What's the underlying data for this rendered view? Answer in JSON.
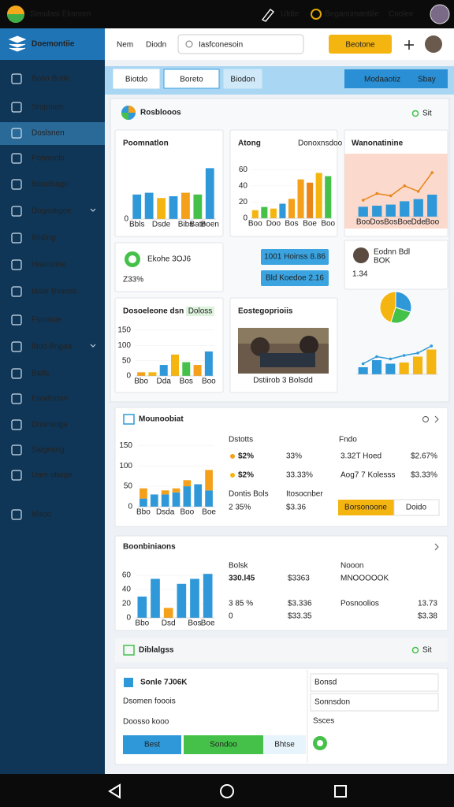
{
  "status_bar": {
    "app_title": "Simulasi Ekonom",
    "action_1": "Uldte",
    "coins": "Beganomantiile",
    "action_2": "Coolee"
  },
  "sidebar": {
    "brand": "Doemontiie",
    "items": [
      "Bosn Bntle",
      "Sropnien",
      "Doslsnen",
      "Ponoonls",
      "Boockiago",
      "Dogsotigoe",
      "Btiding",
      "Hraonotie",
      "Iasar Bxaoss",
      "Fsontuie",
      "Ibod Bngaa",
      "Batls",
      "Enodnrton",
      "Dnonsoga",
      "Saignsng",
      "Uam oboge",
      "Maoo"
    ]
  },
  "header": {
    "link_1": "Nem",
    "link_2": "Diodn",
    "search_placeholder": "Iasfconesoin",
    "button": "Beotone"
  },
  "tabs": {
    "items": [
      "Biotdo",
      "Boreto",
      "Biodon"
    ],
    "button_1": "Modaaotiz",
    "button_2": "Sbay"
  },
  "overview": {
    "title": "Rosblooos",
    "more": "Sit",
    "card_1": {
      "title": "Poomnatlon",
      "chart": {
        "type": "bar",
        "categories": [
          "Bbls",
          null,
          "Dsde",
          null,
          "Bibs",
          "Bate",
          "Boen"
        ],
        "values": [
          28,
          30,
          24,
          26,
          30,
          28,
          58
        ],
        "colors": [
          "#2e98d8",
          "#2e98d8",
          "#f5b511",
          "#2e98d8",
          "#f5a01a",
          "#45c14a",
          "#2e98d8"
        ],
        "ylim": [
          0,
          70
        ],
        "yticks": [
          0
        ]
      }
    },
    "card_2": {
      "title": "Atong",
      "legend": "Donoxnsdoo",
      "chart": {
        "type": "bar",
        "categories": [
          "Boo",
          null,
          "Doo",
          null,
          "Bos",
          null,
          "Boe",
          null,
          "Boo"
        ],
        "values": [
          10,
          14,
          12,
          18,
          24,
          48,
          44,
          56,
          52
        ],
        "colors": [
          "#f5b511",
          "#45c14a",
          "#f5b511",
          "#2e98d8",
          "#f5a01a",
          "#f5a01a",
          "#e8861a",
          "#f5b511",
          "#45c14a"
        ],
        "ylim": [
          0,
          70
        ],
        "yticks": [
          0,
          20,
          40,
          60
        ]
      }
    },
    "card_3": {
      "title": "Wanonatinine",
      "chart": {
        "type": "bar",
        "categories": [
          "Boo",
          "Dos",
          "Bos",
          "Boe",
          "Dde",
          "Boo"
        ],
        "values": [
          18,
          20,
          22,
          28,
          32,
          40
        ],
        "color": "#2e98d8",
        "line": [
          30,
          42,
          38,
          56,
          46,
          80
        ],
        "line_color": "#e8861a",
        "ylim": [
          0,
          100
        ]
      }
    },
    "card_4": {
      "title": "Ekohe 3OJ6",
      "subtitle": "Z33%"
    },
    "buttons": [
      "1001 Hoinss 8.86",
      "Bld Koedoe 2.16"
    ],
    "person": {
      "name": "Eodnn Bdl",
      "role": "BOK",
      "value": "1.34"
    },
    "card_5": {
      "title": "Dosoeleone dsn",
      "badge": "Doloss",
      "chart": {
        "type": "bar",
        "categories": [
          "Bbo",
          null,
          "Dda",
          null,
          "Bos",
          null,
          "Boo"
        ],
        "values": [
          12,
          12,
          36,
          70,
          45,
          36,
          80
        ],
        "colors": [
          "#f5a01a",
          "#f5b511",
          "#2e98d8",
          "#f5b511",
          "#45c14a",
          "#f5a01a",
          "#2e98d8"
        ],
        "ylim": [
          0,
          160
        ],
        "yticks": [
          0,
          50,
          100,
          150
        ]
      }
    },
    "card_6": {
      "title": "Eostegoprioiis",
      "caption": "Dstiirob 3 Bolsdd"
    },
    "pie": {
      "type": "pie",
      "values": [
        30,
        25,
        45
      ],
      "colors": [
        "#2e98d8",
        "#45c14a",
        "#f5b511"
      ]
    },
    "trend": {
      "type": "bar",
      "values": [
        12,
        24,
        18,
        20,
        30,
        42
      ],
      "colors": [
        "#2e98d8",
        "#2e98d8",
        "#2e98d8",
        "#f5b511",
        "#f5b511",
        "#f5b511"
      ],
      "line": [
        18,
        30,
        26,
        32,
        36,
        48
      ],
      "line_color": "#2e98d8",
      "ylim": [
        0,
        60
      ]
    }
  },
  "monitor": {
    "title": "Mounoobiat",
    "chart": {
      "type": "stacked_bar",
      "categories": [
        "Bbo",
        null,
        "Dsda",
        null,
        "Boo",
        null,
        "Boe"
      ],
      "ylim": [
        0,
        160
      ],
      "yticks": [
        0,
        50,
        100,
        150
      ],
      "series": [
        {
          "color": "#2e98d8",
          "values": [
            20,
            30,
            30,
            35,
            50,
            55,
            40
          ]
        },
        {
          "color": "#f5a01a",
          "values": [
            25,
            0,
            10,
            10,
            15,
            0,
            50
          ]
        }
      ]
    },
    "col_1": "Dstotts",
    "col_2": "Fndo",
    "rows": [
      [
        "$2%",
        "33%",
        "3.32T Hoed",
        "$2.67%"
      ],
      [
        "$2%",
        "33.33%",
        "Aog7 7 Kolesss",
        "$3.33%"
      ]
    ],
    "sub_1": "Dontis Bols",
    "sub_2": "Itosocnber",
    "sub_1_value": "2 35%",
    "sub_2_value": "$3.36",
    "button_1": "Borsonoone",
    "button_2": "Doido"
  },
  "combinations": {
    "title": "Boonbiniaons",
    "chart": {
      "type": "bar",
      "categories": [
        "Bbo",
        null,
        "Dsd",
        null,
        "Bos",
        "Boe"
      ],
      "values": [
        30,
        55,
        14,
        48,
        55,
        62
      ],
      "colors": [
        "#2e98d8",
        "#2e98d8",
        "#f5a01a",
        "#2e98d8",
        "#2e98d8",
        "#2e98d8"
      ],
      "ylim": [
        0,
        80
      ],
      "yticks": [
        0,
        20,
        40,
        60
      ]
    },
    "stat_1_label": "Bolsk",
    "stat_1_value": "330.l45",
    "stat_1_extra": "$3363",
    "stat_2_label": "Nooon",
    "stat_2_value": "MNOOOOOK",
    "stat_3": "3 85 %",
    "stat_3_sub": "0",
    "stat_4": "$3.336",
    "stat_4_sub": "$33.35",
    "stat_5_label": "Posnoolios",
    "stat_5_value": "13.73",
    "stat_5_sub": "$3.38"
  },
  "dialogs": {
    "title": "Diblalgss",
    "more": "Sit",
    "heading": "Sonle 7J06K",
    "line_1": "Dsomen fooois",
    "line_2": "Doosso kooo",
    "buttons": [
      "Best",
      "Sondoo",
      "Bhtse"
    ],
    "input_1": "Bonsd",
    "input_2": "Sonnsdon",
    "note": "Ssces"
  }
}
